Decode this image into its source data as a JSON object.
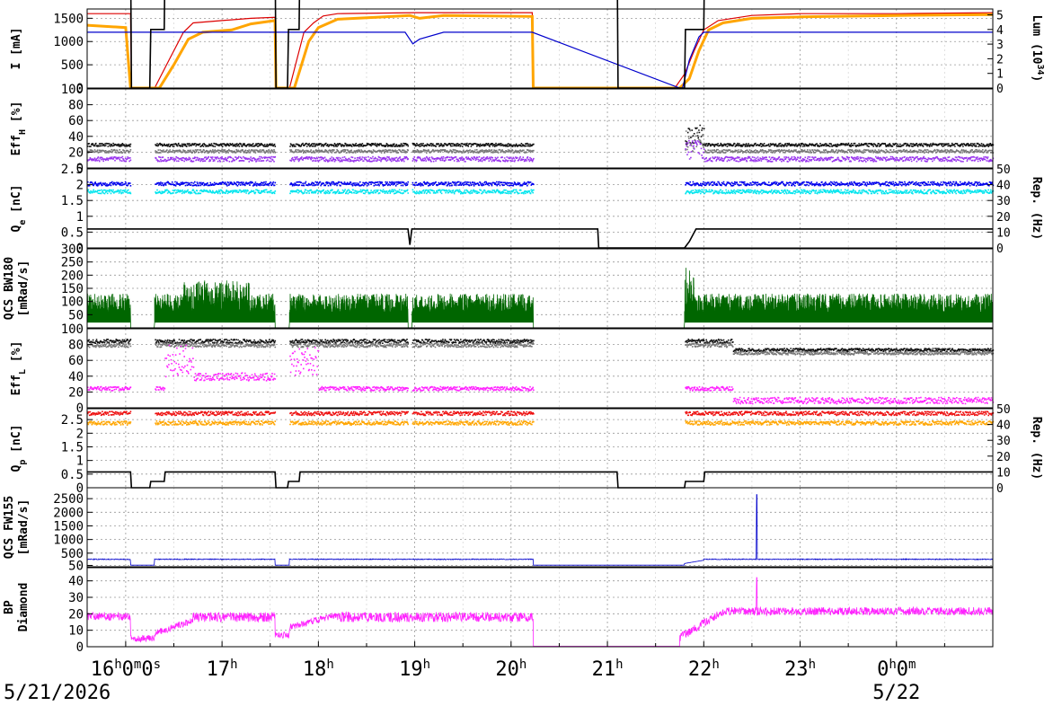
{
  "chart_data": {
    "type": "line",
    "x_axis": {
      "ticks": [
        {
          "hour": 16,
          "sup": "h",
          "main": "16",
          "extra": "0",
          "extra_sup": "m",
          "extra2": "0",
          "extra2_sup": "s"
        },
        {
          "hour": 17,
          "main": "17",
          "sup": "h"
        },
        {
          "hour": 18,
          "main": "18",
          "sup": "h"
        },
        {
          "hour": 19,
          "main": "19",
          "sup": "h"
        },
        {
          "hour": 20,
          "main": "20",
          "sup": "h"
        },
        {
          "hour": 21,
          "main": "21",
          "sup": "h"
        },
        {
          "hour": 22,
          "main": "22",
          "sup": "h"
        },
        {
          "hour": 23,
          "main": "23",
          "sup": "h"
        },
        {
          "hour": 24,
          "main": "0",
          "sup": "h",
          "extra": "0",
          "extra_sup": "m"
        }
      ],
      "start_date": "5/21/2026",
      "next_date": "5/22",
      "range_hours": [
        15.6,
        25.0
      ]
    },
    "panels": [
      {
        "id": "current_lum",
        "ylabel": "I [mA]",
        "yticks": [
          0,
          500,
          1000,
          1500
        ],
        "ylim": [
          0,
          1700
        ],
        "y2label": "Lum (10^34)",
        "y2label_parts": {
          "main": "Lum (10",
          "sup": "34",
          "end": ")"
        },
        "y2ticks": [
          0,
          1,
          2,
          3,
          4,
          5
        ],
        "y2lim": [
          0,
          5.4
        ],
        "series": [
          {
            "color": "#dd0000",
            "points": [
              [
                15.6,
                1600
              ],
              [
                16.05,
                1600
              ],
              [
                16.06,
                0
              ],
              [
                16.3,
                0
              ],
              [
                16.45,
                600
              ],
              [
                16.6,
                1200
              ],
              [
                16.7,
                1400
              ],
              [
                17.0,
                1450
              ],
              [
                17.3,
                1500
              ],
              [
                17.55,
                1520
              ],
              [
                17.56,
                0
              ],
              [
                17.7,
                0
              ],
              [
                17.85,
                1200
              ],
              [
                17.95,
                1400
              ],
              [
                18.05,
                1550
              ],
              [
                18.2,
                1600
              ],
              [
                19.0,
                1620
              ],
              [
                19.5,
                1620
              ],
              [
                20.22,
                1620
              ],
              [
                20.23,
                0
              ],
              [
                21.7,
                0
              ],
              [
                21.8,
                300
              ],
              [
                21.9,
                800
              ],
              [
                22.0,
                1250
              ],
              [
                22.15,
                1450
              ],
              [
                22.5,
                1560
              ],
              [
                23.0,
                1600
              ],
              [
                24.0,
                1600
              ],
              [
                25.0,
                1620
              ]
            ]
          },
          {
            "color": "#ffa500",
            "points": [
              [
                15.6,
                1350
              ],
              [
                16.0,
                1300
              ],
              [
                16.05,
                0
              ],
              [
                16.35,
                0
              ],
              [
                16.5,
                500
              ],
              [
                16.65,
                1050
              ],
              [
                16.8,
                1200
              ],
              [
                17.1,
                1250
              ],
              [
                17.3,
                1380
              ],
              [
                17.55,
                1450
              ],
              [
                17.56,
                0
              ],
              [
                17.75,
                0
              ],
              [
                17.9,
                1000
              ],
              [
                18.0,
                1300
              ],
              [
                18.2,
                1480
              ],
              [
                18.6,
                1520
              ],
              [
                18.95,
                1560
              ],
              [
                19.05,
                1500
              ],
              [
                19.3,
                1560
              ],
              [
                20.22,
                1540
              ],
              [
                20.23,
                0
              ],
              [
                21.75,
                0
              ],
              [
                21.85,
                200
              ],
              [
                21.95,
                800
              ],
              [
                22.05,
                1250
              ],
              [
                22.2,
                1400
              ],
              [
                22.5,
                1500
              ],
              [
                23.0,
                1530
              ],
              [
                24.0,
                1560
              ],
              [
                25.0,
                1580
              ]
            ]
          },
          {
            "color": "#0000cc",
            "points": [
              [
                15.6,
                1200
              ],
              [
                16.05,
                1200
              ],
              [
                16.4,
                1200
              ],
              [
                16.45,
                1200
              ],
              [
                17.55,
                1200
              ],
              [
                17.6,
                1200
              ],
              [
                18.9,
                1200
              ],
              [
                18.98,
                950
              ],
              [
                19.05,
                1050
              ],
              [
                19.3,
                1200
              ],
              [
                20.22,
                1200
              ],
              [
                21.75,
                0
              ],
              [
                21.78,
                0
              ],
              [
                21.85,
                600
              ],
              [
                21.95,
                1100
              ],
              [
                22.0,
                1200
              ],
              [
                25.0,
                1200
              ]
            ]
          }
        ]
      },
      {
        "id": "eff_h",
        "ylabel": "EffH [%]",
        "ylabel_parts": {
          "main": "Eff",
          "sub": "H",
          "end": " [%]"
        },
        "yticks": [
          0,
          20,
          40,
          60,
          80,
          100
        ],
        "ylim": [
          0,
          100
        ],
        "series": [
          {
            "color": "#111111",
            "level": 30,
            "spread": 4
          },
          {
            "color": "#777777",
            "level": 22,
            "spread": 4
          },
          {
            "color": "#9933ee",
            "level": 12,
            "spread": 6
          }
        ],
        "gaps": [
          [
            18.93,
            18.97
          ],
          [
            20.23,
            21.8
          ]
        ]
      },
      {
        "id": "qe",
        "ylabel": "Qe [nC]",
        "ylabel_parts": {
          "main": "Q",
          "sub": "e",
          "end": " [nC]"
        },
        "yticks": [
          0,
          0.5,
          1,
          1.5,
          2,
          2.5
        ],
        "ylim": [
          0,
          2.5
        ],
        "y2label": "Rep. (Hz)",
        "y2ticks": [
          0,
          10,
          20,
          30,
          40,
          50
        ],
        "y2lim": [
          0,
          50
        ],
        "series": [
          {
            "color": "#0000ee",
            "level": 2.05
          },
          {
            "color": "#00e5ee",
            "level": 1.8
          }
        ]
      },
      {
        "id": "qcs_bw180",
        "ylabel": "QCS BW180 [mRad/s]",
        "ylabel_parts": {
          "main": "QCS BW180",
          "second": "[mRad/s]"
        },
        "yticks": [
          50,
          100,
          150,
          200,
          250,
          300
        ],
        "ylim": [
          0,
          300
        ],
        "series": [
          {
            "color": "#006600",
            "level": 80
          }
        ]
      },
      {
        "id": "eff_l",
        "ylabel": "EffL [%]",
        "ylabel_parts": {
          "main": "Eff",
          "sub": "L",
          "end": " [%]"
        },
        "yticks": [
          0,
          20,
          40,
          60,
          80,
          100
        ],
        "ylim": [
          0,
          100
        ],
        "series": [
          {
            "color": "#111111",
            "level": 85
          },
          {
            "color": "#777777",
            "level": 80
          },
          {
            "color": "#ff22ff",
            "level": 25
          }
        ]
      },
      {
        "id": "qp",
        "ylabel": "Qp [nC]",
        "ylabel_parts": {
          "main": "Q",
          "sub": "p",
          "end": " [nC]"
        },
        "yticks": [
          0,
          0.5,
          1,
          1.5,
          2,
          2.5
        ],
        "ylim": [
          0,
          2.9
        ],
        "y2label": "Rep. (Hz)",
        "y2ticks": [
          0,
          10,
          20,
          30,
          40,
          50
        ],
        "y2lim": [
          0,
          50
        ],
        "series": [
          {
            "color": "#ee1111",
            "level": 2.75
          },
          {
            "color": "#ffa500",
            "level": 2.4
          }
        ]
      },
      {
        "id": "qcs_fw155",
        "ylabel": "QCS FW155 [mRad/s]",
        "ylabel_parts": {
          "main": "QCS FW155",
          "second": "[mRad/s]"
        },
        "yticks": [
          50,
          500,
          1000,
          1500,
          2000,
          2500
        ],
        "ylim": [
          0,
          2900
        ],
        "series": [
          {
            "color": "#0000cc",
            "level": 250
          }
        ]
      },
      {
        "id": "bp_diamond",
        "ylabel": "BP Diamond",
        "ylabel_parts": {
          "main": "BP",
          "second": "Diamond"
        },
        "yticks": [
          0,
          10,
          20,
          30,
          40
        ],
        "ylim": [
          0,
          48
        ],
        "series": [
          {
            "color": "#ff22ff",
            "level": 17
          }
        ]
      }
    ],
    "grid": true
  }
}
